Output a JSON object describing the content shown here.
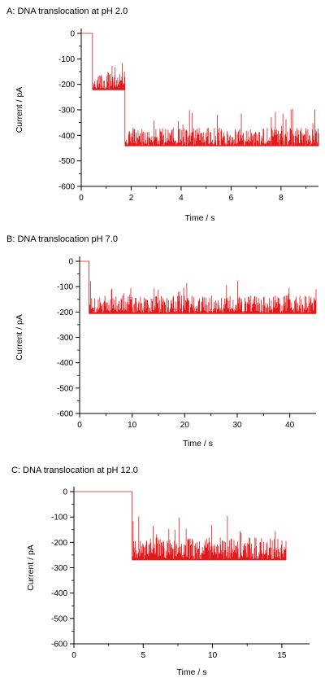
{
  "chart_data": [
    {
      "type": "line",
      "title": "A: DNA translocation at pH 2.0",
      "xlabel": "Time / s",
      "ylabel": "Current / pA",
      "xlim": [
        0,
        9.5
      ],
      "ylim": [
        -600,
        0
      ],
      "x_ticks": [
        0,
        2,
        4,
        6,
        8
      ],
      "y_ticks": [
        0,
        -100,
        -200,
        -300,
        -400,
        -500,
        -600
      ],
      "grid": false,
      "legend": "none",
      "color": "#e31a1c",
      "series": [
        {
          "segments": [
            {
              "x_start": 0,
              "x_end": 0.45,
              "baseline": 0,
              "spikes_to": null
            },
            {
              "x_start": 0.45,
              "x_end": 1.75,
              "baseline": -220,
              "spikes_to": -150,
              "max_spike": -100
            },
            {
              "x_start": 1.75,
              "x_end": 9.5,
              "baseline": -440,
              "spikes_to": -370,
              "max_spike": -290
            }
          ]
        }
      ]
    },
    {
      "type": "line",
      "title": "B: DNA translocation pH 7.0",
      "xlabel": "Time / s",
      "ylabel": "Current / pA",
      "xlim": [
        0,
        45
      ],
      "ylim": [
        -600,
        0
      ],
      "x_ticks": [
        0,
        10,
        20,
        30,
        40
      ],
      "y_ticks": [
        0,
        -100,
        -200,
        -300,
        -400,
        -500,
        -600
      ],
      "grid": false,
      "legend": "none",
      "color": "#e31a1c",
      "series": [
        {
          "segments": [
            {
              "x_start": 0,
              "x_end": 1.8,
              "baseline": 0,
              "spikes_to": null
            },
            {
              "x_start": 1.8,
              "x_end": 45,
              "baseline": -205,
              "spikes_to": -135,
              "max_spike": -75
            }
          ]
        }
      ]
    },
    {
      "type": "line",
      "title": "C: DNA translocation at pH 12.0",
      "xlabel": "Time / s",
      "ylabel": "Current / pA",
      "xlim": [
        0,
        17
      ],
      "ylim": [
        -600,
        0
      ],
      "x_ticks": [
        0,
        5,
        10,
        15
      ],
      "y_ticks": [
        0,
        -100,
        -200,
        -300,
        -400,
        -500,
        -600
      ],
      "grid": false,
      "legend": "none",
      "color": "#e31a1c",
      "series": [
        {
          "segments": [
            {
              "x_start": 0,
              "x_end": 4.2,
              "baseline": 0,
              "spikes_to": null
            },
            {
              "x_start": 4.2,
              "x_end": 15.3,
              "baseline": -268,
              "spikes_to": -180,
              "max_spike": -90
            }
          ]
        }
      ]
    }
  ]
}
